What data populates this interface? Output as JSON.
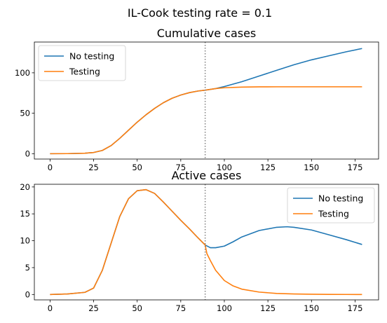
{
  "figure_title": "IL-Cook testing rate = 0.1",
  "colors": {
    "no_testing": "#1f77b4",
    "testing": "#ff7f0e",
    "vline": "#7f7f7f"
  },
  "chart_data": [
    {
      "type": "line",
      "title": "Cumulative cases",
      "xlabel": "",
      "ylabel": "",
      "xlim": [
        -9,
        188.5
      ],
      "ylim": [
        -6.6,
        138
      ],
      "xticks": [
        0,
        25,
        50,
        75,
        100,
        125,
        150,
        175
      ],
      "yticks": [
        0,
        50,
        100
      ],
      "vline_x": 89,
      "legend_position": "upper left",
      "series": [
        {
          "name": "No testing",
          "color_key": "no_testing",
          "x": [
            0,
            10,
            20,
            25,
            30,
            35,
            40,
            45,
            50,
            55,
            60,
            65,
            70,
            75,
            80,
            85,
            89,
            95,
            100,
            110,
            120,
            130,
            140,
            150,
            160,
            170,
            179
          ],
          "y": [
            0,
            0.1,
            0.6,
            1.5,
            4,
            10,
            19,
            29,
            39,
            48,
            56,
            63,
            68.5,
            72.5,
            75.5,
            77.5,
            78.5,
            80.5,
            83,
            89,
            96,
            103,
            110,
            116,
            121,
            126,
            130
          ]
        },
        {
          "name": "Testing",
          "color_key": "testing",
          "x": [
            0,
            10,
            20,
            25,
            30,
            35,
            40,
            45,
            50,
            55,
            60,
            65,
            70,
            75,
            80,
            85,
            89,
            95,
            100,
            110,
            120,
            130,
            140,
            150,
            160,
            170,
            179
          ],
          "y": [
            0,
            0.1,
            0.6,
            1.5,
            4,
            10,
            19,
            29,
            39,
            48,
            56,
            63,
            68.5,
            72.5,
            75.5,
            77.5,
            78.5,
            80.5,
            81.5,
            82.3,
            82.6,
            82.7,
            82.7,
            82.7,
            82.7,
            82.7,
            82.7
          ]
        }
      ]
    },
    {
      "type": "line",
      "title": "Active cases",
      "xlabel": "",
      "ylabel": "",
      "xlim": [
        -9,
        188.5
      ],
      "ylim": [
        -1,
        20.5
      ],
      "xticks": [
        0,
        25,
        50,
        75,
        100,
        125,
        150,
        175
      ],
      "yticks": [
        0,
        5,
        10,
        15,
        20
      ],
      "vline_x": 89,
      "legend_position": "upper right",
      "series": [
        {
          "name": "No testing",
          "color_key": "no_testing",
          "x": [
            0,
            10,
            20,
            25,
            30,
            35,
            40,
            45,
            50,
            55,
            60,
            65,
            70,
            75,
            80,
            85,
            89,
            92,
            95,
            100,
            105,
            110,
            120,
            130,
            136,
            140,
            150,
            160,
            170,
            179
          ],
          "y": [
            0,
            0.1,
            0.4,
            1.2,
            4.5,
            9.5,
            14.5,
            17.8,
            19.3,
            19.5,
            18.8,
            17.2,
            15.5,
            13.8,
            12.2,
            10.5,
            9.2,
            8.7,
            8.7,
            9,
            9.8,
            10.7,
            11.9,
            12.5,
            12.6,
            12.5,
            12,
            11.1,
            10.2,
            9.3
          ]
        },
        {
          "name": "Testing",
          "color_key": "testing",
          "x": [
            0,
            10,
            20,
            25,
            30,
            35,
            40,
            45,
            50,
            55,
            60,
            65,
            70,
            75,
            80,
            85,
            89,
            90,
            92,
            95,
            100,
            105,
            110,
            120,
            130,
            140,
            150,
            160,
            170,
            179
          ],
          "y": [
            0,
            0.1,
            0.4,
            1.2,
            4.5,
            9.5,
            14.5,
            17.8,
            19.3,
            19.5,
            18.8,
            17.2,
            15.5,
            13.8,
            12.2,
            10.5,
            9.2,
            7.6,
            6.3,
            4.5,
            2.6,
            1.6,
            1,
            0.45,
            0.2,
            0.1,
            0.05,
            0.02,
            0.01,
            0
          ]
        }
      ]
    }
  ]
}
